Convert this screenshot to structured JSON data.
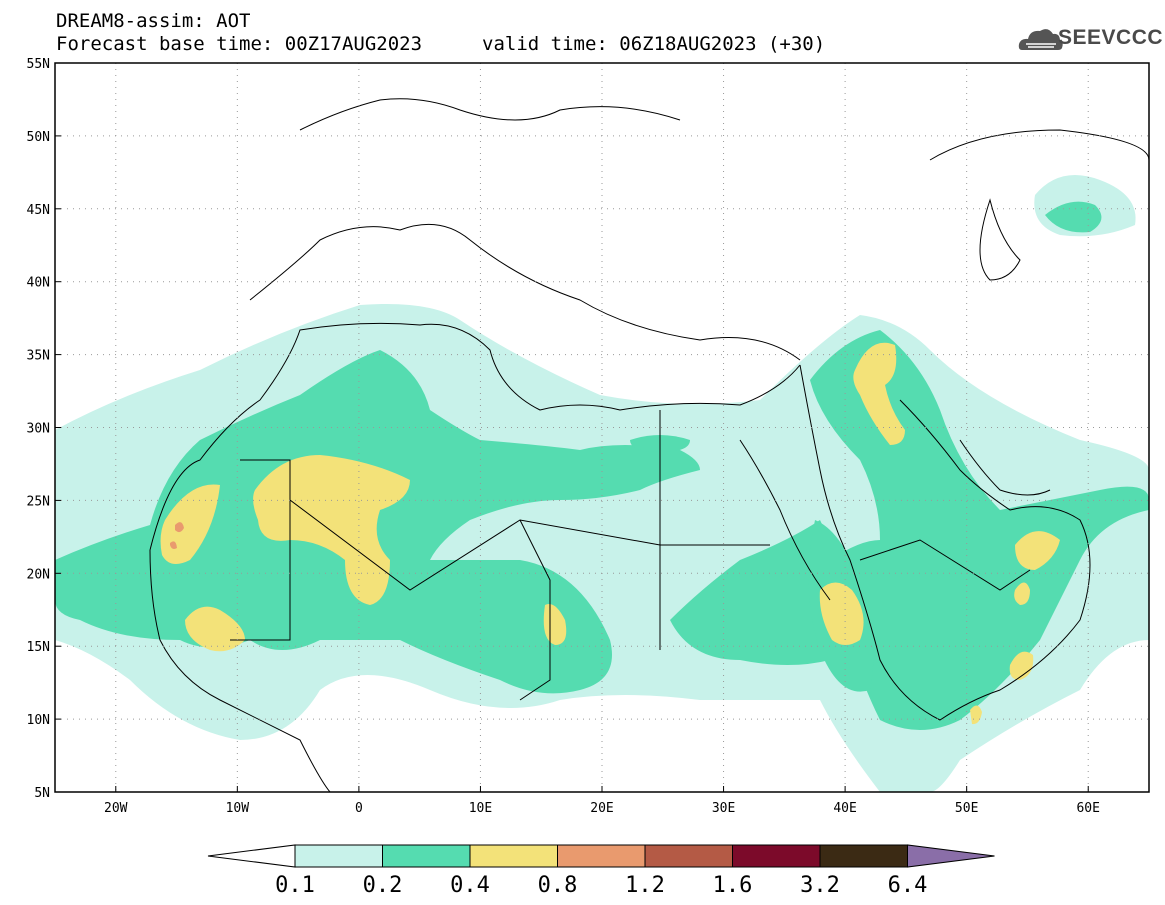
{
  "header": {
    "title": "DREAM8-assim: AOT",
    "base_time": "Forecast base time: 00Z17AUG2023",
    "valid_time": "valid time: 06Z18AUG2023 (+30)",
    "logo_text": "SEEVCCC",
    "logo_icon": "cloud-icon"
  },
  "map": {
    "lat_labels": [
      "55N",
      "50N",
      "45N",
      "40N",
      "35N",
      "30N",
      "25N",
      "20N",
      "15N",
      "10N",
      "5N"
    ],
    "lon_labels": [
      "20W",
      "10W",
      "0",
      "10E",
      "20E",
      "30E",
      "40E",
      "50E",
      "60E"
    ],
    "colors": {
      "land_outline": "#000000",
      "grid": "#999999",
      "bg": "#ffffff"
    }
  },
  "colorbar": {
    "labels": [
      "0.1",
      "0.2",
      "0.4",
      "0.8",
      "1.2",
      "1.6",
      "3.2",
      "6.4"
    ],
    "colors": [
      "#ffffff",
      "#c8f2ea",
      "#55dcb0",
      "#f3e279",
      "#e99a6e",
      "#b45a45",
      "#7c0a2a",
      "#3b2a14",
      "#8a6ea8"
    ]
  }
}
